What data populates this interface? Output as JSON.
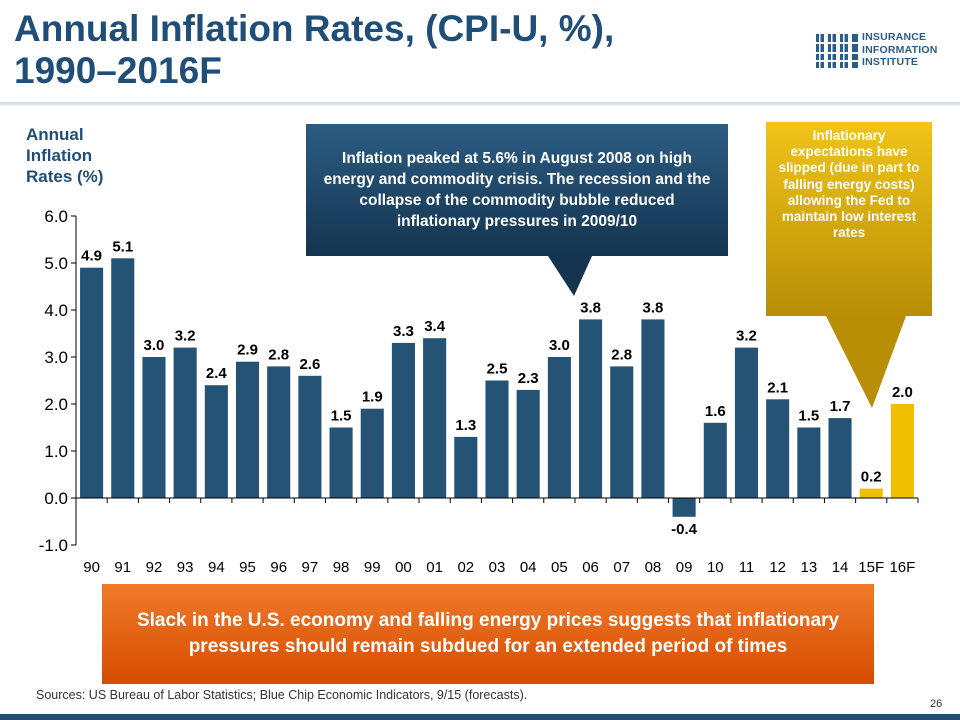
{
  "title_line1": "Annual Inflation Rates, (CPI-U, %),",
  "title_line2": "1990–2016F",
  "logo": {
    "lines": [
      "INSURANCE",
      "INFORMATION",
      "INSTITUTE"
    ],
    "color": "#2a5d8a"
  },
  "y_axis_label": [
    "Annual",
    "Inflation",
    "Rates (%)"
  ],
  "callouts": {
    "peak": "Inflation peaked at 5.6% in August 2008 on high energy and commodity crisis. The recession and the collapse of the commodity bubble reduced inflationary pressures in 2009/10",
    "expectations": "Inflationary expectations have slipped (due in part to falling energy costs) allowing the Fed to maintain low interest rates",
    "slack": "Slack in the U.S. economy and falling energy prices suggests that inflationary pressures should remain subdued for an extended period of times"
  },
  "sources": "Sources: US Bureau of Labor Statistics; Blue Chip Economic Indicators, 9/15 (forecasts).",
  "page_number": "26",
  "colors": {
    "actual": "#245376",
    "forecast": "#f0c000",
    "title": "#1f4e79",
    "callout_blue": "#1e4666",
    "callout_yellow": "#d9ab0c",
    "callout_orange": "#e8620f"
  },
  "chart_data": {
    "type": "bar",
    "categories": [
      "90",
      "91",
      "92",
      "93",
      "94",
      "95",
      "96",
      "97",
      "98",
      "99",
      "00",
      "01",
      "02",
      "03",
      "04",
      "05",
      "06",
      "07",
      "08",
      "09",
      "10",
      "11",
      "12",
      "13",
      "14",
      "15F",
      "16F"
    ],
    "values": [
      4.9,
      5.1,
      3.0,
      3.2,
      2.4,
      2.9,
      2.8,
      2.6,
      1.5,
      1.9,
      3.3,
      3.4,
      1.3,
      2.5,
      2.3,
      3.0,
      3.8,
      2.8,
      3.8,
      -0.4,
      1.6,
      3.2,
      2.1,
      1.5,
      1.7,
      0.2,
      2.0
    ],
    "data_labels": [
      "4.9",
      "5.1",
      "3.0",
      "3.2",
      "2.4",
      "2.9",
      "2.8",
      "2.6",
      "1.5",
      "1.9",
      "3.3",
      "3.4",
      "1.3",
      "2.5",
      "2.3",
      "3.0",
      "3.8",
      "2.8",
      "3.8",
      "-0.4",
      "1.6",
      "3.2",
      "2.1",
      "1.5",
      "1.7",
      "0.2",
      "2.0"
    ],
    "forecast": [
      false,
      false,
      false,
      false,
      false,
      false,
      false,
      false,
      false,
      false,
      false,
      false,
      false,
      false,
      false,
      false,
      false,
      false,
      false,
      false,
      false,
      false,
      false,
      false,
      false,
      true,
      true
    ],
    "ylim": [
      -1.0,
      6.0
    ],
    "yticks": [
      "6.0",
      "5.0",
      "4.0",
      "3.0",
      "2.0",
      "1.0",
      "0.0",
      "-1.0"
    ],
    "ytick_values": [
      6,
      5,
      4,
      3,
      2,
      1,
      0,
      -1
    ],
    "ylabel": "Annual Inflation Rates (%)",
    "title": "Annual Inflation Rates, (CPI-U, %), 1990–2016F",
    "grid": false,
    "legend": "none"
  }
}
